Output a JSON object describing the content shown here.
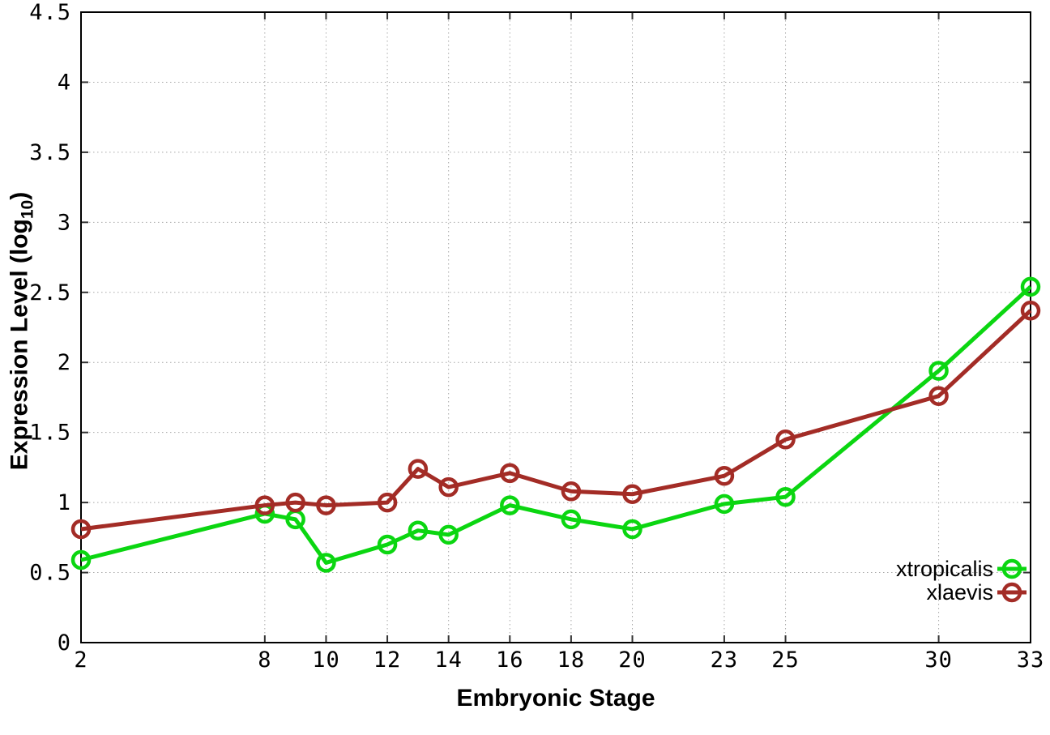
{
  "figure": {
    "xlabel": "Embryonic Stage",
    "ylabel_prefix": "Expression Level (log",
    "ylabel_sub": "10",
    "ylabel_suffix": ")"
  },
  "chart_data": {
    "type": "line",
    "title": "",
    "xlabel": "Embryonic Stage",
    "ylabel": "Expression Level (log10)",
    "x": [
      2,
      8,
      9,
      10,
      12,
      13,
      14,
      16,
      18,
      20,
      23,
      25,
      30,
      33
    ],
    "xtick_labels": [
      "2",
      "8",
      "10",
      "12",
      "14",
      "16",
      "18",
      "20",
      "23",
      "25",
      "30",
      "33"
    ],
    "xticks": [
      2,
      8,
      10,
      12,
      14,
      16,
      18,
      20,
      23,
      25,
      30,
      33
    ],
    "yticks": [
      0,
      0.5,
      1,
      1.5,
      2,
      2.5,
      3,
      3.5,
      4,
      4.5
    ],
    "xlim": [
      2,
      33
    ],
    "ylim": [
      0,
      4.5
    ],
    "grid": true,
    "legend_position": "inside-right",
    "series": [
      {
        "name": "xtropicalis",
        "color": "#0bd611",
        "marker": "open-circle",
        "values": [
          0.59,
          0.92,
          0.88,
          0.57,
          0.7,
          0.8,
          0.77,
          0.98,
          0.88,
          0.81,
          0.99,
          1.04,
          1.94,
          2.54
        ]
      },
      {
        "name": "xlaevis",
        "color": "#a32c26",
        "marker": "open-circle",
        "values": [
          0.81,
          0.98,
          1.0,
          0.98,
          1.0,
          1.24,
          1.11,
          1.21,
          1.08,
          1.06,
          1.19,
          1.45,
          1.76,
          2.37
        ]
      }
    ],
    "colors": {
      "grid": "#a8a8a8",
      "border": "#000000",
      "tick": "#333333",
      "text": "#000000"
    }
  }
}
